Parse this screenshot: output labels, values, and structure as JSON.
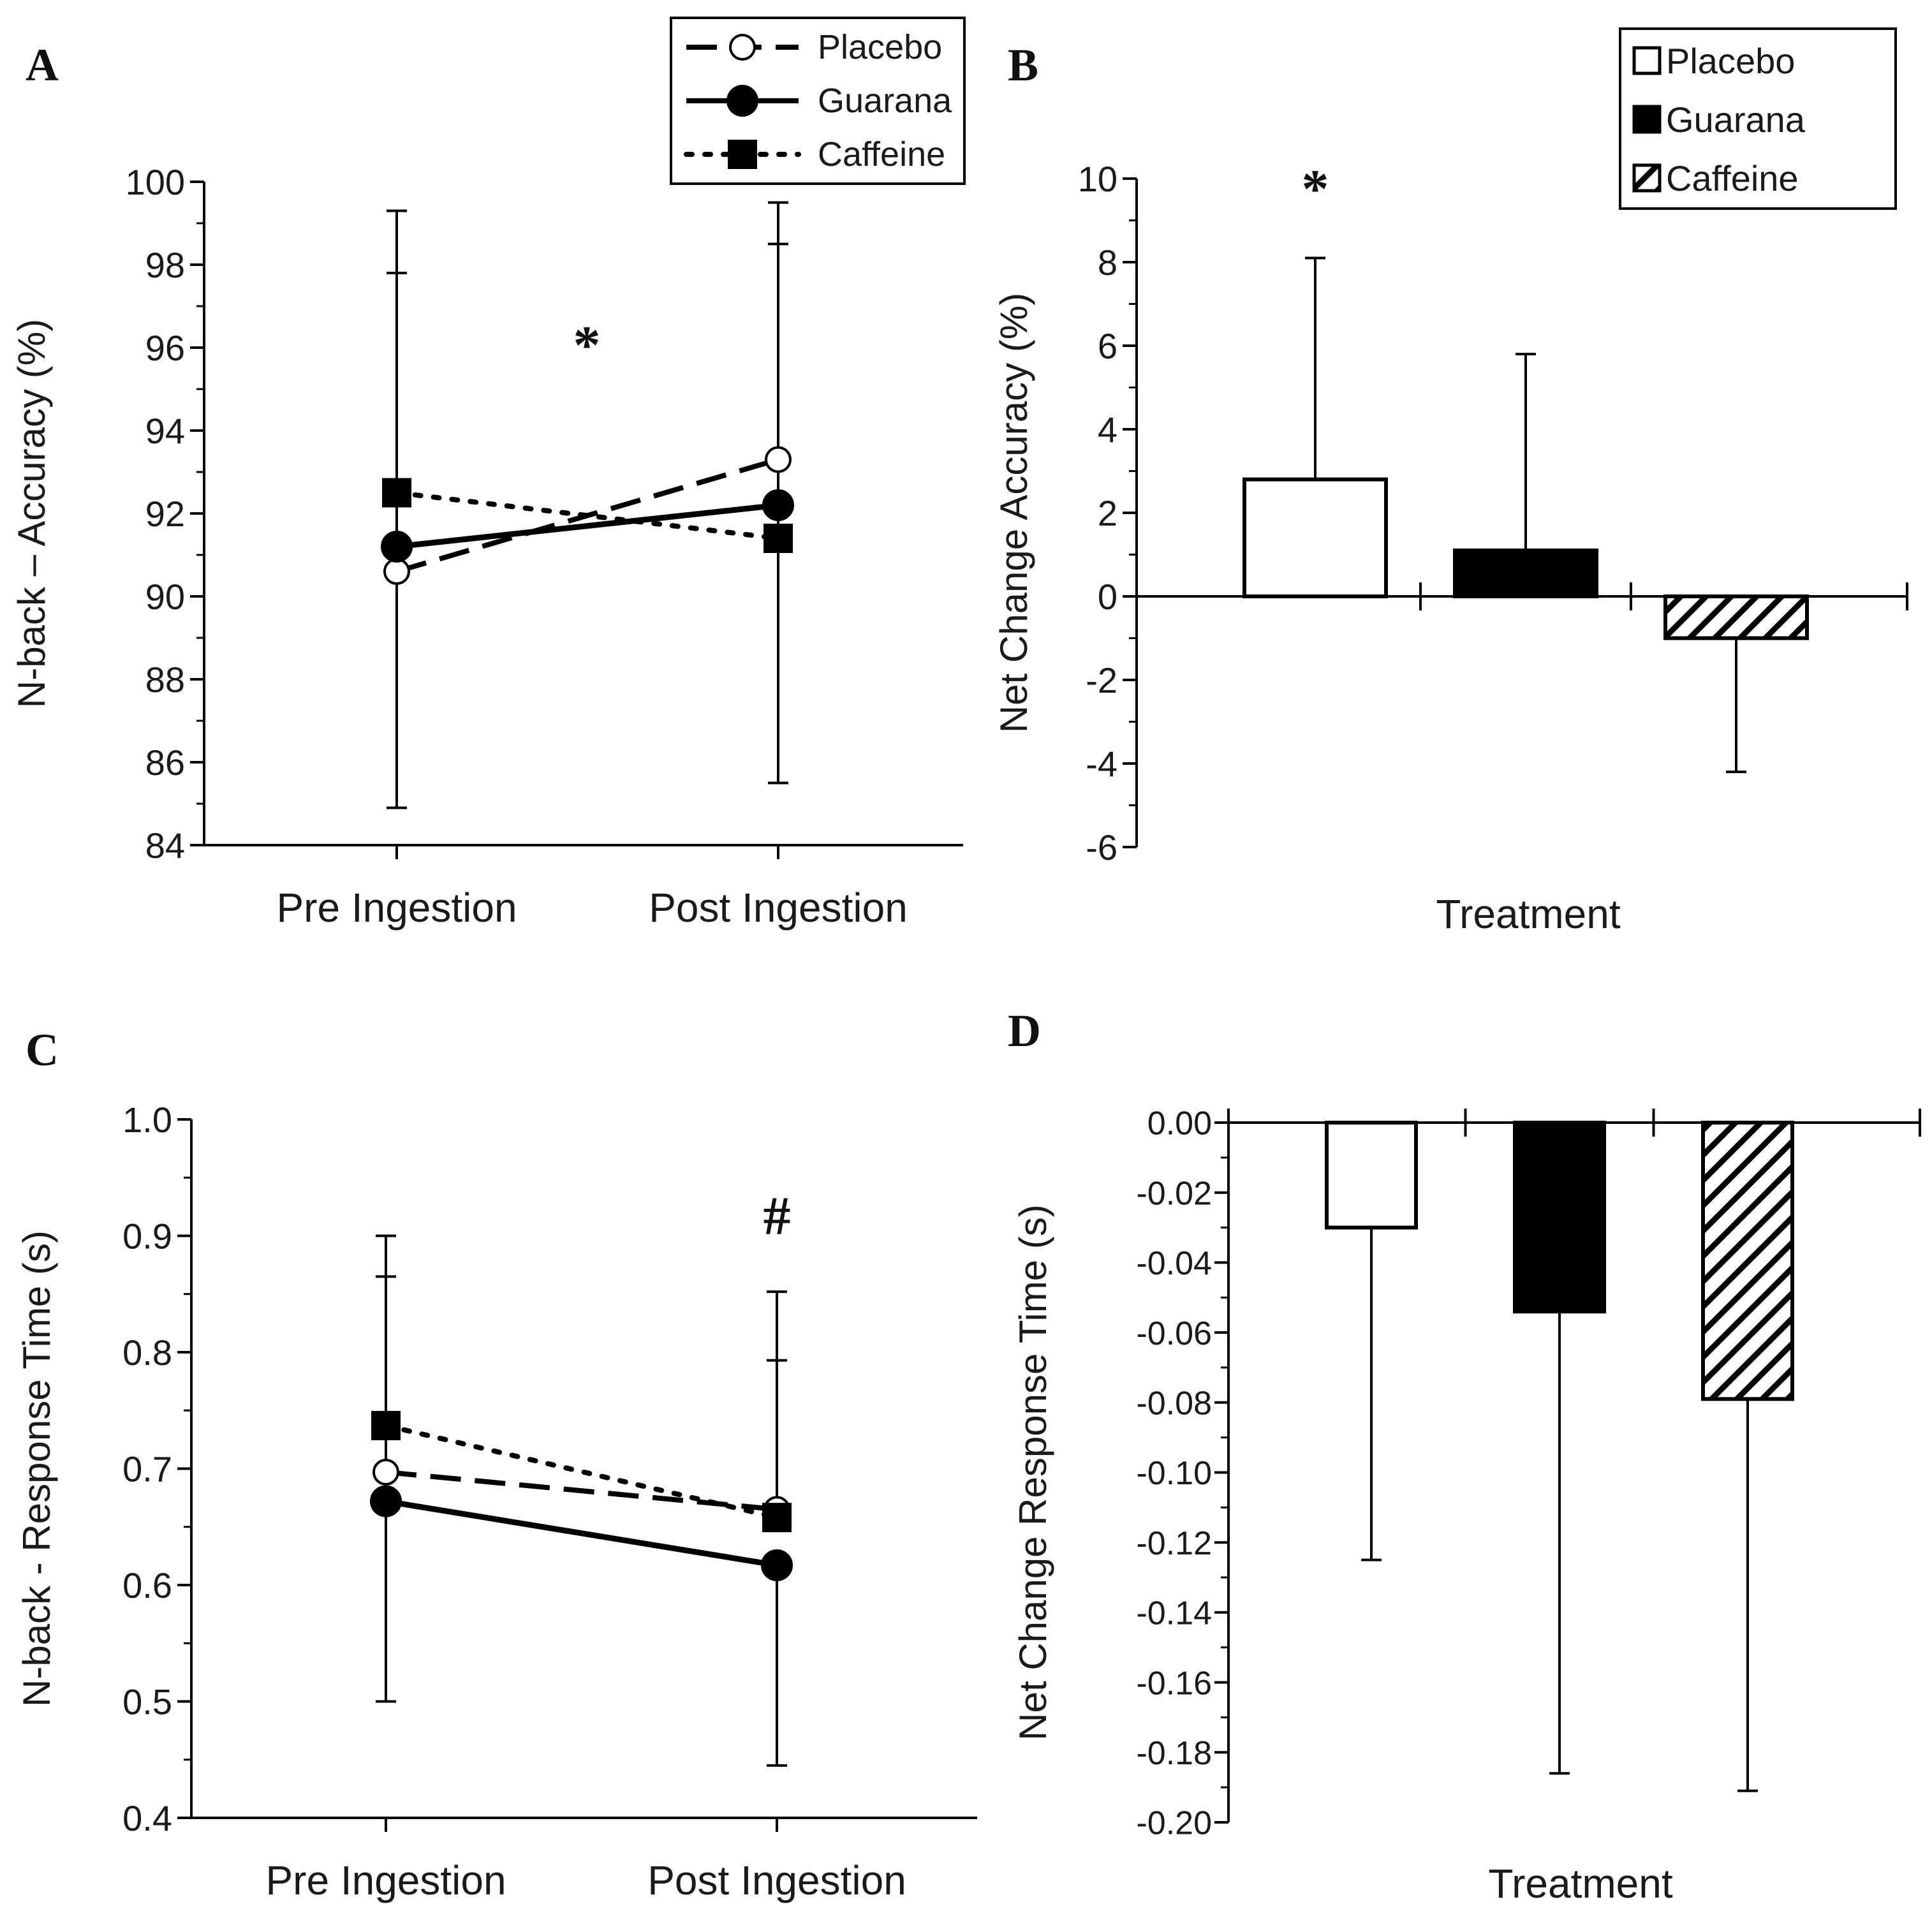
{
  "chart_data": [
    {
      "panel": "A",
      "type": "line",
      "categories": [
        "Pre Ingestion",
        "Post Ingestion"
      ],
      "ylabel": "N-back – Accuracy (%)",
      "ylim": [
        84,
        100
      ],
      "yticks": [
        "84",
        "86",
        "88",
        "90",
        "92",
        "94",
        "96",
        "98",
        "100"
      ],
      "series": [
        {
          "name": "Placebo",
          "style": "dashed",
          "marker": "open-circle",
          "values": [
            90.6,
            93.3
          ],
          "err_upper": [
            97.8,
            98.5
          ],
          "err_lower": [
            null,
            null
          ]
        },
        {
          "name": "Guarana",
          "style": "solid",
          "marker": "filled-circle",
          "values": [
            91.2,
            92.2
          ],
          "err_upper": [
            null,
            99.5
          ],
          "err_lower": [
            84.9,
            85.5
          ]
        },
        {
          "name": "Caffeine",
          "style": "dotted",
          "marker": "filled-square",
          "values": [
            92.5,
            91.4
          ],
          "err_upper": [
            99.3,
            null
          ],
          "err_lower": [
            null,
            null
          ]
        }
      ],
      "annotations": [
        {
          "text": "*",
          "position": "middle-upper"
        }
      ],
      "legend": "top-right"
    },
    {
      "panel": "B",
      "type": "bar",
      "categories": [
        "Placebo",
        "Guarana",
        "Caffeine"
      ],
      "xlabel": "Treatment",
      "ylabel": "Net Change Accuracy (%)",
      "ylim": [
        -6,
        10
      ],
      "yticks": [
        "-6",
        "-4",
        "-2",
        "0",
        "2",
        "4",
        "6",
        "8",
        "10"
      ],
      "values": [
        2.8,
        1.1,
        -1.0
      ],
      "errors": [
        5.3,
        4.7,
        3.2
      ],
      "fills": [
        "open",
        "solid",
        "hatched"
      ],
      "annotations": [
        {
          "text": "*",
          "category": "Placebo"
        }
      ],
      "legend": "top-right"
    },
    {
      "panel": "C",
      "type": "line",
      "categories": [
        "Pre Ingestion",
        "Post Ingestion"
      ],
      "ylabel": "N-back - Response Time (s)",
      "ylim": [
        0.4,
        1.0
      ],
      "yticks": [
        "0.4",
        "0.5",
        "0.6",
        "0.7",
        "0.8",
        "0.9",
        "1.0"
      ],
      "series": [
        {
          "name": "Placebo",
          "style": "dashed",
          "marker": "open-circle",
          "values": [
            0.697,
            0.665
          ],
          "err_upper": [
            0.865,
            0.793
          ],
          "err_lower": [
            null,
            null
          ]
        },
        {
          "name": "Guarana",
          "style": "solid",
          "marker": "filled-circle",
          "values": [
            0.672,
            0.617
          ],
          "err_upper": [
            null,
            null
          ],
          "err_lower": [
            0.5,
            0.445
          ]
        },
        {
          "name": "Caffeine",
          "style": "dotted",
          "marker": "filled-square",
          "values": [
            0.737,
            0.658
          ],
          "err_upper": [
            0.9,
            0.852
          ],
          "err_lower": [
            null,
            null
          ]
        }
      ],
      "annotations": [
        {
          "text": "#",
          "category": "Post Ingestion"
        }
      ]
    },
    {
      "panel": "D",
      "type": "bar",
      "categories": [
        "Placebo",
        "Guarana",
        "Caffeine"
      ],
      "xlabel": "Treatment",
      "ylabel": "Net Change Response Time (s)",
      "ylim": [
        -0.2,
        0.0
      ],
      "yticks": [
        "0.00",
        "-0.02",
        "-0.04",
        "-0.06",
        "-0.08",
        "-0.10",
        "-0.12",
        "-0.14",
        "-0.16",
        "-0.18",
        "-0.20"
      ],
      "values": [
        -0.03,
        -0.054,
        -0.079
      ],
      "errors": [
        0.095,
        0.132,
        0.112
      ],
      "fills": [
        "open",
        "solid",
        "hatched"
      ]
    }
  ]
}
